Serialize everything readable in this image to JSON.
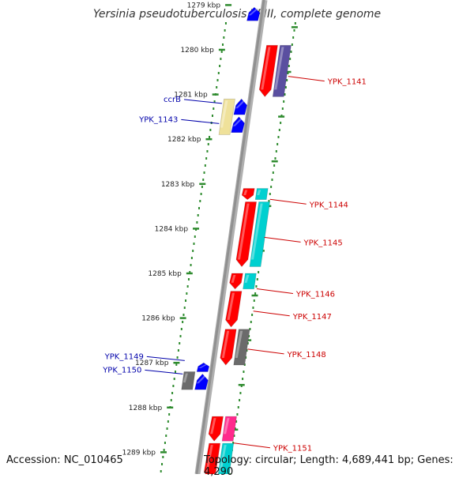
{
  "title": "Yersinia pseudotuberculosis YPIII, complete genome",
  "accession": "Accession: NC_010465",
  "topology": "Topology: circular; Length: 4,689,441 bp; Genes: 4,290",
  "colors": {
    "red": "#ff0000",
    "blue": "#0000ff",
    "cyan": "#00d0d0",
    "purple": "#5a4fa0",
    "gray": "#6b6b6b",
    "yellow": "#efe19a",
    "magenta": "#ff2a8c",
    "tick": "#2e8b2e",
    "backbone": "#909090",
    "label_red": "#cc0000",
    "label_blue": "#0000aa"
  },
  "scale": {
    "unit": "kbp",
    "ticks": [
      {
        "kbp": 1279,
        "label": "1279 kbp"
      },
      {
        "kbp": 1280,
        "label": "1280 kbp"
      },
      {
        "kbp": 1281,
        "label": "1281 kbp"
      },
      {
        "kbp": 1282,
        "label": "1282 kbp"
      },
      {
        "kbp": 1283,
        "label": "1283 kbp"
      },
      {
        "kbp": 1284,
        "label": "1284 kbp"
      },
      {
        "kbp": 1285,
        "label": "1285 kbp"
      },
      {
        "kbp": 1286,
        "label": "1286 kbp"
      },
      {
        "kbp": 1287,
        "label": "1287 kbp"
      },
      {
        "kbp": 1288,
        "label": "1288 kbp"
      },
      {
        "kbp": 1289,
        "label": "1289 kbp"
      }
    ]
  },
  "genes": [
    {
      "strand": "forward",
      "lane": 0,
      "start": 1279.05,
      "end": 1279.35,
      "color": "blue",
      "dir": "up"
    },
    {
      "strand": "reverse",
      "lane": 0,
      "start": 1279.9,
      "end": 1281.05,
      "color": "red",
      "dir": "down"
    },
    {
      "strand": "reverse",
      "lane": 1,
      "start": 1279.9,
      "end": 1281.05,
      "color": "purple",
      "dir": "none"
    },
    {
      "strand": "forward",
      "lane": 1,
      "start": 1281.1,
      "end": 1281.9,
      "color": "yellow",
      "dir": "none"
    },
    {
      "strand": "forward",
      "lane": 0,
      "start": 1281.1,
      "end": 1281.45,
      "color": "blue",
      "dir": "up"
    },
    {
      "strand": "forward",
      "lane": 0,
      "start": 1281.5,
      "end": 1281.85,
      "color": "blue",
      "dir": "up"
    },
    {
      "strand": "reverse",
      "lane": 0,
      "start": 1283.1,
      "end": 1283.35,
      "color": "red",
      "dir": "down"
    },
    {
      "strand": "reverse",
      "lane": 1,
      "start": 1283.1,
      "end": 1283.35,
      "color": "cyan",
      "dir": "none"
    },
    {
      "strand": "reverse",
      "lane": 0,
      "start": 1283.4,
      "end": 1284.85,
      "color": "red",
      "dir": "down"
    },
    {
      "strand": "reverse",
      "lane": 1,
      "start": 1283.4,
      "end": 1284.85,
      "color": "cyan",
      "dir": "none"
    },
    {
      "strand": "reverse",
      "lane": 0,
      "start": 1285.0,
      "end": 1285.35,
      "color": "red",
      "dir": "down"
    },
    {
      "strand": "reverse",
      "lane": 1,
      "start": 1285.0,
      "end": 1285.35,
      "color": "cyan",
      "dir": "none"
    },
    {
      "strand": "reverse",
      "lane": 0,
      "start": 1285.4,
      "end": 1286.2,
      "color": "red",
      "dir": "down"
    },
    {
      "strand": "reverse",
      "lane": 0,
      "start": 1286.25,
      "end": 1287.05,
      "color": "red",
      "dir": "down"
    },
    {
      "strand": "reverse",
      "lane": 1,
      "start": 1286.25,
      "end": 1287.05,
      "color": "gray",
      "dir": "none"
    },
    {
      "strand": "forward",
      "lane": 0,
      "start": 1287.0,
      "end": 1287.2,
      "color": "blue",
      "dir": "up"
    },
    {
      "strand": "forward",
      "lane": 1,
      "start": 1287.2,
      "end": 1287.6,
      "color": "gray",
      "dir": "none"
    },
    {
      "strand": "forward",
      "lane": 0,
      "start": 1287.25,
      "end": 1287.6,
      "color": "blue",
      "dir": "up"
    },
    {
      "strand": "reverse",
      "lane": 0,
      "start": 1288.2,
      "end": 1288.75,
      "color": "red",
      "dir": "down"
    },
    {
      "strand": "reverse",
      "lane": 1,
      "start": 1288.2,
      "end": 1288.75,
      "color": "magenta",
      "dir": "none"
    },
    {
      "strand": "reverse",
      "lane": 0,
      "start": 1288.8,
      "end": 1289.6,
      "color": "red",
      "dir": "down"
    },
    {
      "strand": "reverse",
      "lane": 1,
      "start": 1288.8,
      "end": 1289.6,
      "color": "cyan",
      "dir": "none"
    }
  ],
  "gene_labels": [
    {
      "text": "YPK_1141",
      "side": "right",
      "at": 1280.7,
      "color": "label_red"
    },
    {
      "text": "ccrB",
      "side": "left",
      "at": 1281.2,
      "color": "label_blue"
    },
    {
      "text": "YPK_1143",
      "side": "left",
      "at": 1281.65,
      "color": "label_blue"
    },
    {
      "text": "YPK_1144",
      "side": "right",
      "at": 1283.45,
      "color": "label_red"
    },
    {
      "text": "YPK_1145",
      "side": "right",
      "at": 1284.3,
      "color": "label_red"
    },
    {
      "text": "YPK_1146",
      "side": "right",
      "at": 1285.45,
      "color": "label_red"
    },
    {
      "text": "YPK_1147",
      "side": "right",
      "at": 1285.95,
      "color": "label_red"
    },
    {
      "text": "YPK_1148",
      "side": "right",
      "at": 1286.8,
      "color": "label_red"
    },
    {
      "text": "YPK_1149",
      "side": "left",
      "at": 1286.95,
      "color": "label_blue"
    },
    {
      "text": "YPK_1150",
      "side": "left",
      "at": 1287.25,
      "color": "label_blue"
    },
    {
      "text": "YPK_1151",
      "side": "right",
      "at": 1288.9,
      "color": "label_red"
    }
  ]
}
